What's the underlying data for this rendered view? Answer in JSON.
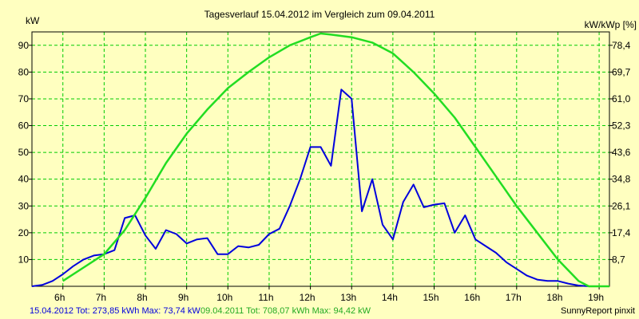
{
  "chart_data": {
    "type": "line",
    "title": "Tagesverlauf 15.04.2012 im Vergleich zum 09.04.2011",
    "ylabel_left": "kW",
    "ylabel_right": "kW/kWp [%]",
    "x_ticks": [
      "6h",
      "7h",
      "8h",
      "9h",
      "10h",
      "11h",
      "12h",
      "13h",
      "14h",
      "15h",
      "16h",
      "17h",
      "18h",
      "19h"
    ],
    "y_ticks_left": [
      10,
      20,
      30,
      40,
      50,
      60,
      70,
      80,
      90
    ],
    "y_ticks_right": [
      "8,7",
      "17,4",
      "26,1",
      "34,8",
      "43,6",
      "52,3",
      "61,0",
      "69,7",
      "78,4"
    ],
    "xlim": [
      5.25,
      19.25
    ],
    "ylim": [
      0,
      95
    ],
    "grid": true,
    "footer_left": "15.04.2012 Tot: 273,85 kWh Max: 73,74 kW",
    "footer_mid": "09.04.2011 Tot: 708,07 kWh Max: 94,42 kW",
    "footer_right": "SunnyReport pinxit",
    "series": [
      {
        "name": "15.04.2012",
        "color": "#0000DD",
        "points": [
          [
            5.25,
            0
          ],
          [
            5.5,
            0.5
          ],
          [
            5.75,
            2
          ],
          [
            6,
            4.5
          ],
          [
            6.25,
            7.5
          ],
          [
            6.5,
            10
          ],
          [
            6.75,
            11.5
          ],
          [
            7,
            12
          ],
          [
            7.25,
            13.5
          ],
          [
            7.5,
            25.5
          ],
          [
            7.75,
            26.5
          ],
          [
            8,
            19
          ],
          [
            8.25,
            14
          ],
          [
            8.5,
            21
          ],
          [
            8.75,
            19.5
          ],
          [
            9,
            16
          ],
          [
            9.25,
            17.5
          ],
          [
            9.5,
            18
          ],
          [
            9.75,
            12
          ],
          [
            10,
            12
          ],
          [
            10.25,
            15
          ],
          [
            10.5,
            14.5
          ],
          [
            10.75,
            15.5
          ],
          [
            11,
            19.5
          ],
          [
            11.25,
            21.5
          ],
          [
            11.5,
            30
          ],
          [
            11.75,
            40
          ],
          [
            12,
            52
          ],
          [
            12.25,
            52
          ],
          [
            12.5,
            45
          ],
          [
            12.75,
            73.5
          ],
          [
            13,
            70
          ],
          [
            13.25,
            28
          ],
          [
            13.5,
            40
          ],
          [
            13.75,
            23
          ],
          [
            14,
            17.5
          ],
          [
            14.25,
            31.5
          ],
          [
            14.5,
            38
          ],
          [
            14.75,
            29.5
          ],
          [
            15,
            30.5
          ],
          [
            15.25,
            31
          ],
          [
            15.5,
            20
          ],
          [
            15.75,
            26.5
          ],
          [
            16,
            17.5
          ],
          [
            16.25,
            15
          ],
          [
            16.5,
            12.5
          ],
          [
            16.75,
            9
          ],
          [
            17,
            6.5
          ],
          [
            17.25,
            4
          ],
          [
            17.5,
            2.5
          ],
          [
            17.75,
            2
          ],
          [
            18,
            2
          ],
          [
            18.25,
            1
          ],
          [
            18.5,
            0.3
          ],
          [
            18.75,
            0
          ],
          [
            19.25,
            0
          ]
        ]
      },
      {
        "name": "09.04.2011",
        "color": "#22DD22",
        "points": [
          [
            6,
            2
          ],
          [
            6.5,
            7
          ],
          [
            7,
            12
          ],
          [
            7.5,
            21
          ],
          [
            8,
            33
          ],
          [
            8.5,
            46
          ],
          [
            9,
            57
          ],
          [
            9.5,
            66
          ],
          [
            10,
            74
          ],
          [
            10.5,
            80
          ],
          [
            11,
            85.5
          ],
          [
            11.5,
            90
          ],
          [
            12,
            93
          ],
          [
            12.25,
            94.4
          ],
          [
            12.5,
            94
          ],
          [
            13,
            93
          ],
          [
            13.5,
            91
          ],
          [
            14,
            87
          ],
          [
            14.5,
            80
          ],
          [
            15,
            72
          ],
          [
            15.5,
            63
          ],
          [
            16,
            52
          ],
          [
            16.5,
            41
          ],
          [
            17,
            30
          ],
          [
            17.5,
            20
          ],
          [
            18,
            10
          ],
          [
            18.5,
            2
          ],
          [
            18.75,
            0
          ],
          [
            19.25,
            0
          ]
        ]
      }
    ]
  }
}
